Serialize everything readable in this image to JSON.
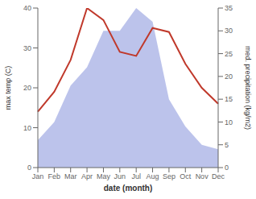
{
  "chart_data": {
    "type": "line",
    "x_label": "date (month)",
    "y_label": "max temp (C)",
    "y2_label": "med. precipitation (kg/m2)",
    "categories": [
      "Jan",
      "Feb",
      "Mar",
      "Apr",
      "May",
      "Jun",
      "Jul",
      "Aug",
      "Sep",
      "Oct",
      "Nov",
      "Dec"
    ],
    "series": [
      {
        "type": "area",
        "axis": "y2",
        "color": "#b0b8e8",
        "values": [
          6,
          10,
          18,
          22,
          30,
          30,
          35,
          32,
          15,
          9,
          5,
          4
        ]
      },
      {
        "type": "line",
        "color": "#c0392b",
        "values": [
          14,
          19,
          27,
          40,
          37,
          29,
          28,
          35,
          34,
          26,
          20,
          16
        ]
      }
    ],
    "ylim": [
      0,
      40
    ],
    "yticks": [
      0,
      10,
      20,
      30,
      40
    ],
    "y2lim": [
      0,
      35
    ],
    "y2ticks": [
      0,
      5,
      10,
      15,
      20,
      25,
      30,
      35
    ],
    "grid": false
  }
}
